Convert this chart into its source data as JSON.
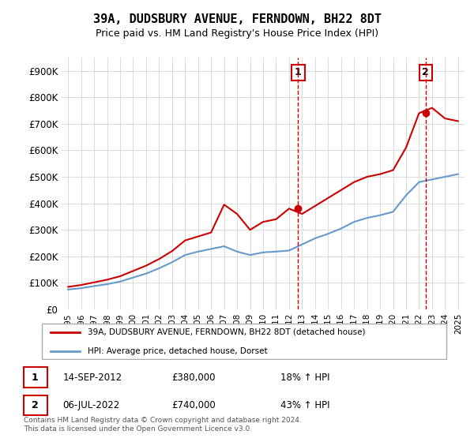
{
  "title": "39A, DUDSBURY AVENUE, FERNDOWN, BH22 8DT",
  "subtitle": "Price paid vs. HM Land Registry's House Price Index (HPI)",
  "legend_line1": "39A, DUDSBURY AVENUE, FERNDOWN, BH22 8DT (detached house)",
  "legend_line2": "HPI: Average price, detached house, Dorset",
  "annotation1_label": "1",
  "annotation1_date": "14-SEP-2012",
  "annotation1_price": "£380,000",
  "annotation1_hpi": "18% ↑ HPI",
  "annotation1_year": 2012.7,
  "annotation1_value": 380000,
  "annotation2_label": "2",
  "annotation2_date": "06-JUL-2022",
  "annotation2_price": "£740,000",
  "annotation2_hpi": "43% ↑ HPI",
  "annotation2_year": 2022.5,
  "annotation2_value": 740000,
  "footer": "Contains HM Land Registry data © Crown copyright and database right 2024.\nThis data is licensed under the Open Government Licence v3.0.",
  "red_color": "#cc0000",
  "blue_color": "#6699cc",
  "background_color": "#ffffff",
  "grid_color": "#dddddd",
  "ylim": [
    0,
    950000
  ],
  "yticks": [
    0,
    100000,
    200000,
    300000,
    400000,
    500000,
    600000,
    700000,
    800000,
    900000
  ],
  "ytick_labels": [
    "£0",
    "£100K",
    "£200K",
    "£300K",
    "£400K",
    "£500K",
    "£600K",
    "£700K",
    "£800K",
    "£900K"
  ],
  "xlim_start": 1994.5,
  "xlim_end": 2025.5,
  "hpi_years": [
    1995,
    1996,
    1997,
    1998,
    1999,
    2000,
    2001,
    2002,
    2003,
    2004,
    2005,
    2006,
    2007,
    2008,
    2009,
    2010,
    2011,
    2012,
    2013,
    2014,
    2015,
    2016,
    2017,
    2018,
    2019,
    2020,
    2021,
    2022,
    2023,
    2024,
    2025
  ],
  "hpi_values": [
    75000,
    80000,
    88000,
    95000,
    105000,
    120000,
    135000,
    155000,
    178000,
    205000,
    218000,
    228000,
    238000,
    218000,
    205000,
    215000,
    218000,
    222000,
    245000,
    268000,
    285000,
    305000,
    330000,
    345000,
    355000,
    368000,
    430000,
    480000,
    490000,
    500000,
    510000
  ],
  "red_years": [
    1995,
    1996,
    1997,
    1998,
    1999,
    2000,
    2001,
    2002,
    2003,
    2004,
    2005,
    2006,
    2007,
    2008,
    2009,
    2010,
    2011,
    2012,
    2013,
    2014,
    2015,
    2016,
    2017,
    2018,
    2019,
    2020,
    2021,
    2022,
    2023,
    2024,
    2025
  ],
  "red_values": [
    85000,
    92000,
    102000,
    112000,
    125000,
    145000,
    165000,
    190000,
    220000,
    260000,
    275000,
    290000,
    395000,
    360000,
    300000,
    330000,
    340000,
    380000,
    360000,
    390000,
    420000,
    450000,
    480000,
    500000,
    510000,
    525000,
    610000,
    740000,
    760000,
    720000,
    710000
  ]
}
